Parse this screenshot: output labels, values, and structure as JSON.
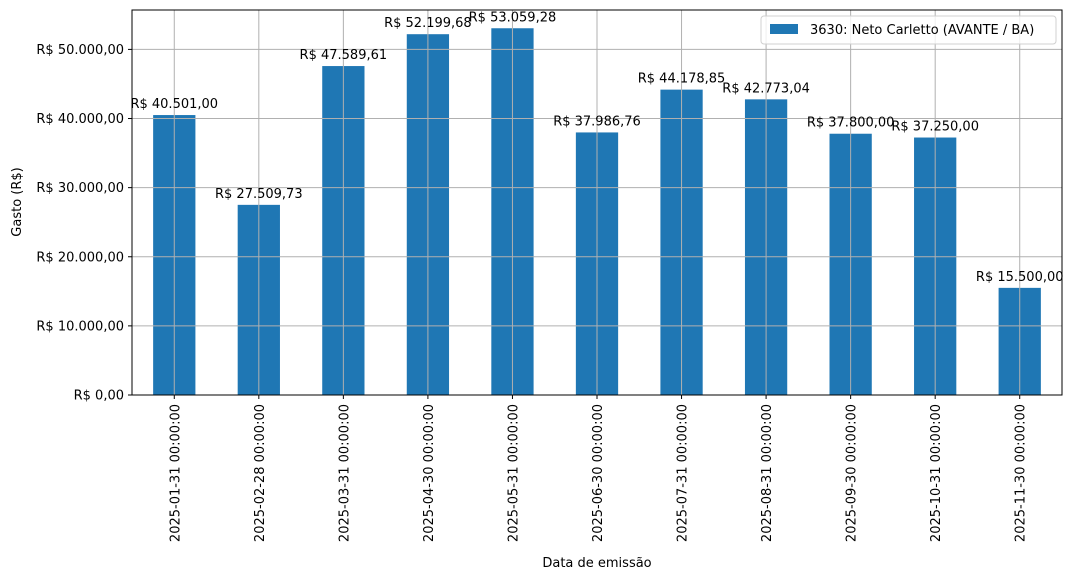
{
  "chart_data": {
    "type": "bar",
    "title": "",
    "xlabel": "Data de emissão",
    "ylabel": "Gasto (R$)",
    "ylim": [
      0,
      55700
    ],
    "grid": true,
    "legend_position": "upper right",
    "categories": [
      "2025-01-31 00:00:00",
      "2025-02-28 00:00:00",
      "2025-03-31 00:00:00",
      "2025-04-30 00:00:00",
      "2025-05-31 00:00:00",
      "2025-06-30 00:00:00",
      "2025-07-31 00:00:00",
      "2025-08-31 00:00:00",
      "2025-09-30 00:00:00",
      "2025-10-31 00:00:00",
      "2025-11-30 00:00:00"
    ],
    "series": [
      {
        "name": "3630: Neto Carletto (AVANTE / BA)",
        "color": "#1f77b4",
        "values": [
          40501.0,
          27509.73,
          47589.61,
          52199.68,
          53059.28,
          37986.76,
          44178.85,
          42773.04,
          37800.0,
          37250.0,
          15500.0
        ],
        "labels": [
          "R$ 40.501,00",
          "R$ 27.509,73",
          "R$ 47.589,61",
          "R$ 52.199,68",
          "R$ 53.059,28",
          "R$ 37.986,76",
          "R$ 44.178,85",
          "R$ 42.773,04",
          "R$ 37.800,00",
          "R$ 37.250,00",
          "R$ 15.500,00"
        ]
      }
    ],
    "yticks": [
      0,
      10000,
      20000,
      30000,
      40000,
      50000
    ],
    "ytick_labels": [
      "R$ 0,00",
      "R$ 10.000,00",
      "R$ 20.000,00",
      "R$ 30.000,00",
      "R$ 40.000,00",
      "R$ 50.000,00"
    ]
  },
  "colors": {
    "bar": "#1f77b4",
    "grid": "#b0b0b0",
    "axis": "#000000"
  }
}
